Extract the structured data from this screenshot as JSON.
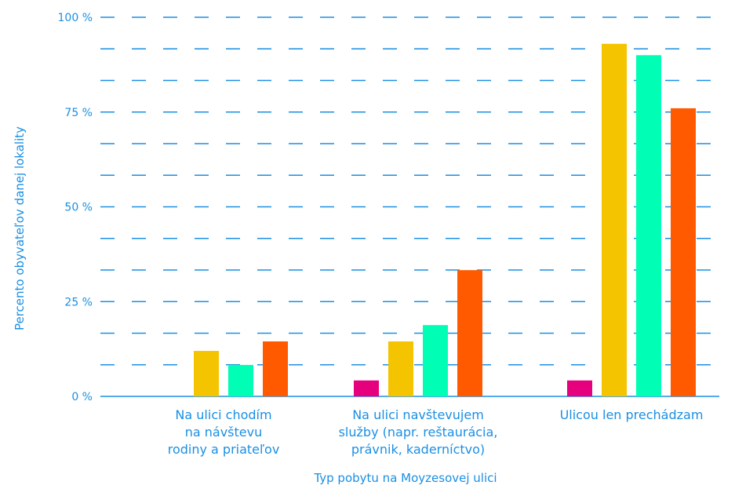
{
  "chart_data": {
    "type": "bar",
    "title": "",
    "xlabel": "Typ pobytu na Moyzesovej ulici",
    "ylabel": "Percento obyvateľov danej lokality",
    "ylim": [
      0,
      100
    ],
    "yticks": [
      "0 %",
      "25 %",
      "50 %",
      "75 %",
      "100 %"
    ],
    "grid": true,
    "categories": [
      [
        "Na ulici chodím",
        "na návštevu",
        "rodiny a priateľov"
      ],
      [
        "Na ulici navštevujem",
        "služby (napr. reštaurácia,",
        "právnik, kaderníctvo)"
      ],
      [
        "Ulicou len prechádzam"
      ]
    ],
    "series": [
      {
        "color": "#e6007e",
        "values": [
          0,
          4.2,
          4.2
        ]
      },
      {
        "color": "#f5c400",
        "values": [
          12,
          14.5,
          93
        ]
      },
      {
        "color": "#00ffb4",
        "values": [
          8.3,
          18.8,
          90
        ]
      },
      {
        "color": "#ff5a00",
        "values": [
          14.5,
          33.3,
          76
        ]
      }
    ]
  },
  "colors": {
    "accent": "#1a8fe3",
    "grid": "#1a8fe3"
  }
}
